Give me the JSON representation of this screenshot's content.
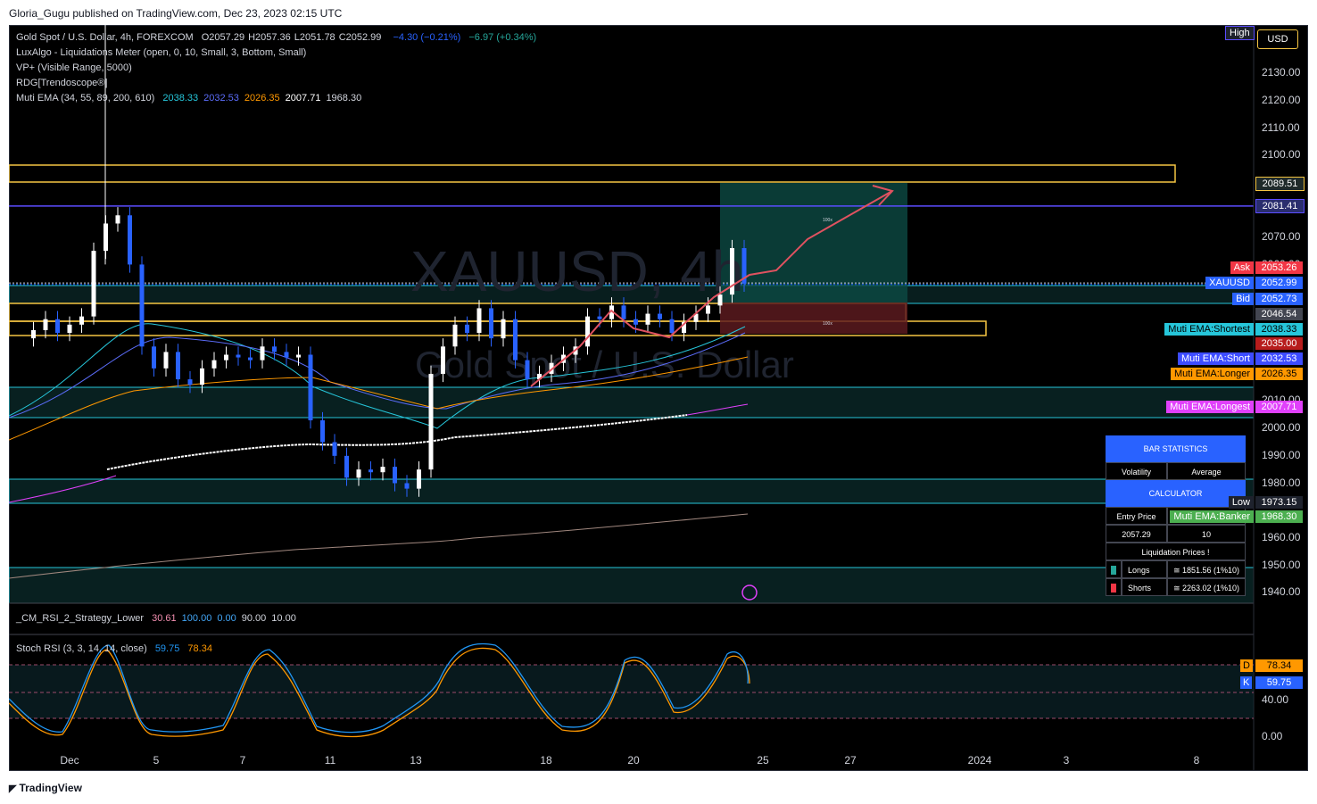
{
  "header": {
    "published_text": "Gloria_Gugu published on TradingView.com, Dec 23, 2023 02:15 UTC"
  },
  "footer": {
    "logo_text": "TradingView"
  },
  "legend": {
    "main_title": "Gold Spot / U.S. Dollar, 4h, FOREXCOM",
    "ohlc": [
      {
        "label": "O",
        "value": "2057.29"
      },
      {
        "label": "H",
        "value": "2057.36"
      },
      {
        "label": "L",
        "value": "2051.78"
      },
      {
        "label": "C",
        "value": "2052.99"
      }
    ],
    "change": "−4.30 (−0.21%)",
    "change2": "−6.97 (+0.34%)",
    "indicators": [
      "LuxAlgo - Liquidations Meter (open, 0, 10, Small, 3, Bottom, Small)",
      "VP+ (Visible Range, 5000)",
      "RDG[Trendoscope®]"
    ],
    "ema_label": "Muti EMA (34, 55, 89, 200, 610)",
    "ema_values": [
      {
        "value": "2038.33",
        "color": "#26c6da"
      },
      {
        "value": "2032.53",
        "color": "#5b6cf9"
      },
      {
        "value": "2026.35",
        "color": "#ff9800"
      },
      {
        "value": "2007.71",
        "color": "#ffffff"
      },
      {
        "value": "1968.30",
        "color": "#d1d4dc"
      }
    ]
  },
  "watermark": {
    "symbol": "XAUUSD, 4h",
    "name": "Gold Spot / U.S. Dollar"
  },
  "scale_buttons": {
    "high": "High",
    "currency": "USD"
  },
  "price_axis": {
    "ticks": [
      "2130.00",
      "2120.00",
      "2110.00",
      "2100.00",
      "2090.00",
      "2070.00",
      "2060.00",
      "2010.00",
      "2000.00",
      "1990.00",
      "1980.00",
      "1960.00",
      "1950.00",
      "1940.00"
    ],
    "labels": [
      {
        "value": "2089.51",
        "bg": "#1f2a2a",
        "fg": "#ffffff",
        "border": "#f5c542"
      },
      {
        "value": "2081.41",
        "bg": "#2a2e6e",
        "fg": "#ffffff",
        "border": "#5b4cff"
      },
      {
        "value": "2053.26",
        "bg": "#f23645",
        "fg": "#ffffff"
      },
      {
        "value": "2052.99",
        "bg": "#2962ff",
        "fg": "#ffffff"
      },
      {
        "value": "2052.73",
        "bg": "#2962ff",
        "fg": "#ffffff"
      },
      {
        "value": "2046.54",
        "bg": "#434651",
        "fg": "#ffffff"
      },
      {
        "value": "2038.33",
        "bg": "#26c6da",
        "fg": "#000000"
      },
      {
        "value": "2035.00",
        "bg": "#b71c1c",
        "fg": "#ffffff"
      },
      {
        "value": "2032.53",
        "bg": "#3d4cff",
        "fg": "#ffffff"
      },
      {
        "value": "2026.35",
        "bg": "#ff9800",
        "fg": "#000000"
      },
      {
        "value": "2007.71",
        "bg": "#e040fb",
        "fg": "#ffffff"
      },
      {
        "value": "1973.15",
        "bg": "#1e222d",
        "fg": "#ffffff"
      },
      {
        "value": "1968.30",
        "bg": "#4caf50",
        "fg": "#ffffff"
      }
    ],
    "tag_labels": [
      {
        "text": "Ask",
        "bg": "#f23645",
        "fg": "#ffffff"
      },
      {
        "text": "XAUUSD",
        "bg": "#2962ff",
        "fg": "#ffffff"
      },
      {
        "text": "Bid",
        "bg": "#2962ff",
        "fg": "#ffffff"
      },
      {
        "text": "Muti EMA:Shortest",
        "bg": "#26c6da",
        "fg": "#000000"
      },
      {
        "text": "Muti EMA:Short",
        "bg": "#3d4cff",
        "fg": "#ffffff"
      },
      {
        "text": "Muti EMA:Longer",
        "bg": "#ff9800",
        "fg": "#000000"
      },
      {
        "text": "Muti EMA:Longest",
        "bg": "#e040fb",
        "fg": "#ffffff"
      },
      {
        "text": "Low",
        "bg": "#1e222d",
        "fg": "#ffffff"
      },
      {
        "text": "Muti EMA:Banker",
        "bg": "#4caf50",
        "fg": "#ffffff"
      }
    ]
  },
  "time_axis": {
    "labels": [
      "Dec",
      "5",
      "7",
      "11",
      "13",
      "18",
      "20",
      "25",
      "27",
      "2024",
      "3",
      "8"
    ]
  },
  "stats_table": {
    "title": "BAR STATISTICS",
    "row1": [
      "Volatility",
      "Average"
    ],
    "calc_title": "CALCULATOR",
    "row2": [
      "Entry Price",
      ""
    ],
    "row3": [
      "2057.29",
      "10"
    ],
    "liq_title": "Liquidation Prices !",
    "longs_label": "Longs",
    "longs_value": "≅ 1851.56 (1%10)",
    "shorts_label": "Shorts",
    "shorts_value": "≅ 2263.02 (1%10)",
    "colors": {
      "header": "#2962ff",
      "longs": "#26a69a",
      "shorts": "#f23645"
    }
  },
  "rsi_pane": {
    "title": "_CM_RSI_2_Strategy_Lower",
    "values": [
      {
        "value": "30.61",
        "color": "#f48fb1"
      },
      {
        "value": "100.00",
        "color": "#42a5f5"
      },
      {
        "value": "0.00",
        "color": "#42a5f5"
      },
      {
        "value": "90.00",
        "color": "#d1d4dc"
      },
      {
        "value": "10.00",
        "color": "#d1d4dc"
      }
    ]
  },
  "stoch_pane": {
    "title": "Stoch RSI (3, 3, 14, 14, close)",
    "k_value": "59.75",
    "d_value": "78.34",
    "ticks": [
      "40.00",
      "0.00"
    ],
    "d_label": "D",
    "k_label": "K",
    "colors": {
      "k": "#2196f3",
      "d": "#ff9800"
    }
  },
  "annotations": {
    "box_label_top": "100x",
    "box_label_bottom": "100x"
  },
  "colors": {
    "up": "#ffffff",
    "down": "#2962ff",
    "zone_border_yellow": "#f5c542",
    "zone_border_cyan": "#26c6da",
    "resistance_line": "#5b4cff",
    "arrow": "#e05260"
  },
  "chart_data": {
    "type": "candlestick",
    "title": "Gold Spot / U.S. Dollar, 4h, FOREXCOM",
    "symbol": "XAUUSD",
    "timeframe": "4h",
    "ylim": [
      1935,
      2140
    ],
    "x_labels": [
      "Dec",
      "5",
      "7",
      "11",
      "13",
      "18",
      "20",
      "25",
      "27",
      "2024",
      "3",
      "8"
    ],
    "last_price": 2052.99,
    "ask": 2053.26,
    "bid": 2052.73,
    "session_low": 1973.15,
    "levels": [
      2089.51,
      2081.41,
      2046.54,
      2035.0
    ],
    "ema": {
      "periods": [
        34,
        55,
        89,
        200,
        610
      ],
      "latest": [
        2038.33,
        2032.53,
        2026.35,
        2007.71,
        1968.3
      ]
    },
    "stoch_rsi": {
      "k": 59.75,
      "d": 78.34
    },
    "rsi_strategy": [
      30.61,
      100.0,
      0.0,
      90.0,
      10.0
    ],
    "close_series": [
      2036,
      2040,
      2035,
      2038,
      2041,
      2065,
      2075,
      2078,
      2060,
      2030,
      2022,
      2028,
      2018,
      2016,
      2022,
      2025,
      2027,
      2026,
      2025,
      2030,
      2028,
      2026,
      2027,
      2003,
      1995,
      1990,
      1982,
      1985,
      1984,
      1986,
      1980,
      1978,
      1985,
      2020,
      2030,
      2038,
      2035,
      2044,
      2033,
      2040,
      2025,
      2018,
      2020,
      2024,
      2027,
      2030,
      2041,
      2040,
      2045,
      2040,
      2038,
      2042,
      2040,
      2035,
      2039,
      2042,
      2045,
      2049,
      2066,
      2053
    ]
  }
}
